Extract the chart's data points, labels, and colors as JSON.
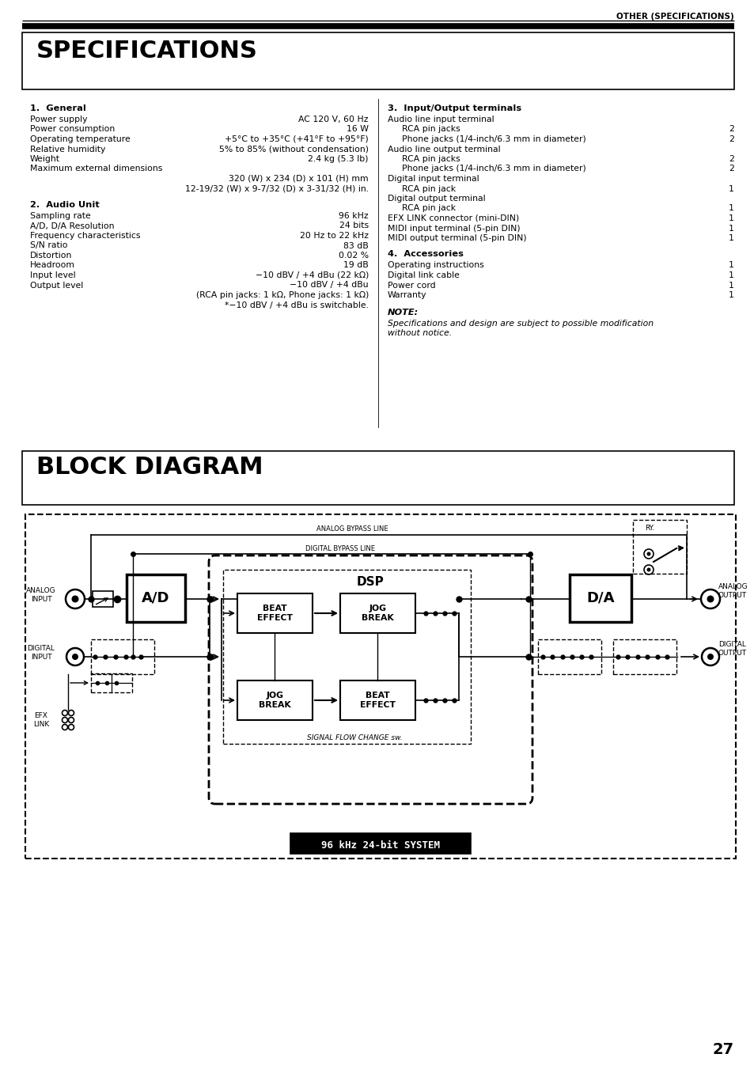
{
  "page_header": "OTHER (SPECIFICATIONS)",
  "page_number": "27",
  "specs_title": "SPECIFICATIONS",
  "block_diagram_title": "BLOCK DIAGRAM",
  "col1_s1_heading": "1.  General",
  "col1_s1_items": [
    [
      "Power supply",
      "AC 120 V, 60 Hz"
    ],
    [
      "Power consumption",
      "16 W"
    ],
    [
      "Operating temperature",
      "+5°C to +35°C (+41°F to +95°F)"
    ],
    [
      "Relative humidity",
      "5% to 85% (without condensation)"
    ],
    [
      "Weight",
      "2.4 kg (5.3 lb)"
    ],
    [
      "Maximum external dimensions",
      null
    ],
    [
      null,
      "320 (W) x 234 (D) x 101 (H) mm"
    ],
    [
      null,
      "12-19/32 (W) x 9-7/32 (D) x 3-31/32 (H) in."
    ]
  ],
  "col1_s2_heading": "2.  Audio Unit",
  "col1_s2_items": [
    [
      "Sampling rate",
      "96 kHz"
    ],
    [
      "A/D, D/A Resolution",
      "24 bits"
    ],
    [
      "Frequency characteristics",
      "20 Hz to 22 kHz"
    ],
    [
      "S/N ratio",
      "83 dB"
    ],
    [
      "Distortion",
      "0.02 %"
    ],
    [
      "Headroom",
      "19 dB"
    ],
    [
      "Input level",
      "−10 dBV / +4 dBu (22 kΩ)"
    ],
    [
      "Output level",
      "−10 dBV / +4 dBu"
    ],
    [
      null,
      "(RCA pin jacks: 1 kΩ, Phone jacks: 1 kΩ)"
    ],
    [
      null,
      "*−10 dBV / +4 dBu is switchable."
    ]
  ],
  "col2_s3_heading": "3.  Input/Output terminals",
  "col2_s3_items": [
    [
      "Audio line input terminal",
      null,
      0
    ],
    [
      "RCA pin jacks",
      "2",
      1
    ],
    [
      "Phone jacks (1/4-inch/6.3 mm in diameter)",
      "2",
      1
    ],
    [
      "Audio line output terminal",
      null,
      0
    ],
    [
      "RCA pin jacks",
      "2",
      1
    ],
    [
      "Phone jacks (1/4-inch/6.3 mm in diameter)",
      "2",
      1
    ],
    [
      "Digital input terminal",
      null,
      0
    ],
    [
      "RCA pin jack",
      "1",
      1
    ],
    [
      "Digital output terminal",
      null,
      0
    ],
    [
      "RCA pin jack",
      "1",
      1
    ],
    [
      "EFX LINK connector (mini-DIN)",
      "1",
      0
    ],
    [
      "MIDI input terminal (5-pin DIN)",
      "1",
      0
    ],
    [
      "MIDI output terminal (5-pin DIN)",
      "1",
      0
    ]
  ],
  "col2_s4_heading": "4.  Accessories",
  "col2_s4_items": [
    [
      "Operating instructions",
      "1"
    ],
    [
      "Digital link cable",
      "1"
    ],
    [
      "Power cord",
      "1"
    ],
    [
      "Warranty",
      "1"
    ]
  ],
  "note_heading": "NOTE:",
  "note_line1": "Specifications and design are subject to possible modification",
  "note_line2": "without notice."
}
